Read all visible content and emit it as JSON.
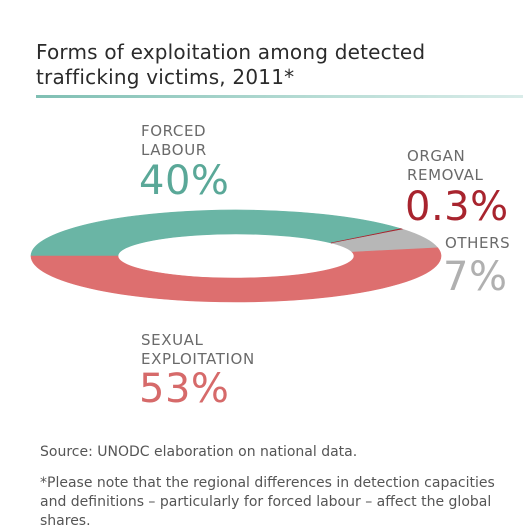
{
  "title_lines": [
    "Forms of exploitation among detected",
    "trafficking victims, 2011*"
  ],
  "chart_data": {
    "type": "pie",
    "variant": "donut",
    "slices": [
      {
        "label_lines": [
          "FORCED",
          "LABOUR"
        ],
        "value": 40,
        "value_label": "40%",
        "color": "#6ab5a5"
      },
      {
        "label_lines": [
          "ORGAN",
          "REMOVAL"
        ],
        "value": 0.3,
        "value_label": "0.3%",
        "color": "#a8242e"
      },
      {
        "label_lines": [
          "OTHERS"
        ],
        "value": 7,
        "value_label": "7%",
        "color": "#b7b7b7"
      },
      {
        "label_lines": [
          "SEXUAL",
          "EXPLOITATION"
        ],
        "value": 53,
        "value_label": "53%",
        "color": "#dd6f6f"
      }
    ]
  },
  "colors": {
    "forced_labour_text": "#5aa898",
    "organ_removal_text": "#a8242e",
    "others_text": "#b0b0b0",
    "sexual_exploitation_text": "#d66a6a",
    "rule": "#7fbfb3"
  },
  "source": "Source: UNODC elaboration on national data.",
  "note": "*Please note that the regional differences in detection capacities and definitions – particularly for forced labour – affect the global shares."
}
